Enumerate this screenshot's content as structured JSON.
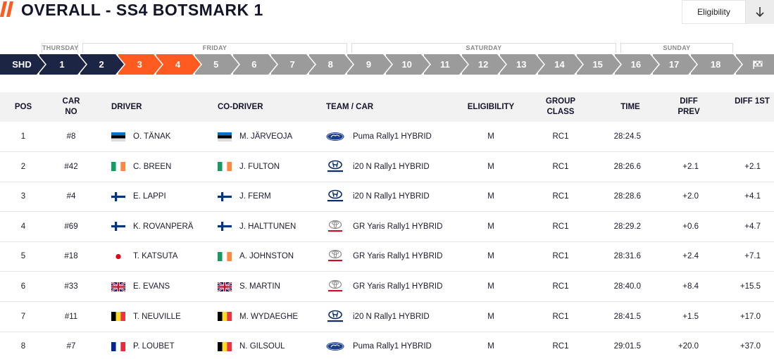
{
  "header": {
    "title": "OVERALL - SS4 BOTSMARK 1",
    "eligibility_button": "Eligibility",
    "accent_color": "#ff5a1f"
  },
  "days": [
    "THURSDAY",
    "FRIDAY",
    "SATURDAY",
    "SUNDAY"
  ],
  "stages": {
    "items": [
      "SHD",
      "1",
      "2",
      "3",
      "4",
      "5",
      "6",
      "7",
      "8",
      "9",
      "10",
      "11",
      "12",
      "13",
      "14",
      "15",
      "16",
      "17",
      "18"
    ],
    "finish_icon": "flag-icon",
    "active_stage": "4",
    "colors": {
      "completed": "#1d2545",
      "active": "#ff5a1f",
      "upcoming": "#9b9b9b"
    }
  },
  "table": {
    "columns": [
      "POS",
      "CAR NO",
      "DRIVER",
      "CO-DRIVER",
      "TEAM / CAR",
      "ELIGIBILITY",
      "GROUP CLASS",
      "TIME",
      "DIFF PREV",
      "DIFF 1ST"
    ],
    "rows": [
      {
        "pos": "1",
        "car": "#8",
        "driver": "O. TÄNAK",
        "driver_flag": "EST",
        "codriver": "M. JÄRVEOJA",
        "codriver_flag": "EST",
        "make": "ford",
        "team": "Puma Rally1 HYBRID",
        "elig": "M",
        "class": "RC1",
        "time": "28:24.5",
        "prev": "",
        "first": ""
      },
      {
        "pos": "2",
        "car": "#42",
        "driver": "C. BREEN",
        "driver_flag": "IRL",
        "codriver": "J. FULTON",
        "codriver_flag": "IRL",
        "make": "hyundai",
        "team": "i20 N Rally1 HYBRID",
        "elig": "M",
        "class": "RC1",
        "time": "28:26.6",
        "prev": "+2.1",
        "first": "+2.1"
      },
      {
        "pos": "3",
        "car": "#4",
        "driver": "E. LAPPI",
        "driver_flag": "FIN",
        "codriver": "J. FERM",
        "codriver_flag": "FIN",
        "make": "hyundai",
        "team": "i20 N Rally1 HYBRID",
        "elig": "M",
        "class": "RC1",
        "time": "28:28.6",
        "prev": "+2.0",
        "first": "+4.1"
      },
      {
        "pos": "4",
        "car": "#69",
        "driver": "K. ROVANPERÄ",
        "driver_flag": "FIN",
        "codriver": "J. HALTTUNEN",
        "codriver_flag": "FIN",
        "make": "toyota",
        "team": "GR Yaris Rally1 HYBRID",
        "elig": "M",
        "class": "RC1",
        "time": "28:29.2",
        "prev": "+0.6",
        "first": "+4.7"
      },
      {
        "pos": "5",
        "car": "#18",
        "driver": "T. KATSUTA",
        "driver_flag": "JPN",
        "codriver": "A. JOHNSTON",
        "codriver_flag": "IRL",
        "make": "toyota",
        "team": "GR Yaris Rally1 HYBRID",
        "elig": "M",
        "class": "RC1",
        "time": "28:31.6",
        "prev": "+2.4",
        "first": "+7.1"
      },
      {
        "pos": "6",
        "car": "#33",
        "driver": "E. EVANS",
        "driver_flag": "GBR",
        "codriver": "S. MARTIN",
        "codriver_flag": "GBR",
        "make": "toyota",
        "team": "GR Yaris Rally1 HYBRID",
        "elig": "M",
        "class": "RC1",
        "time": "28:40.0",
        "prev": "+8.4",
        "first": "+15.5"
      },
      {
        "pos": "7",
        "car": "#11",
        "driver": "T. NEUVILLE",
        "driver_flag": "BEL",
        "codriver": "M. WYDAEGHE",
        "codriver_flag": "BEL",
        "make": "hyundai",
        "team": "i20 N Rally1 HYBRID",
        "elig": "M",
        "class": "RC1",
        "time": "28:41.5",
        "prev": "+1.5",
        "first": "+17.0"
      },
      {
        "pos": "8",
        "car": "#7",
        "driver": "P. LOUBET",
        "driver_flag": "FRA",
        "codriver": "N. GILSOUL",
        "codriver_flag": "BEL",
        "make": "ford",
        "team": "Puma Rally1 HYBRID",
        "elig": "M",
        "class": "RC1",
        "time": "29:01.5",
        "prev": "+20.0",
        "first": "+37.0"
      }
    ]
  }
}
